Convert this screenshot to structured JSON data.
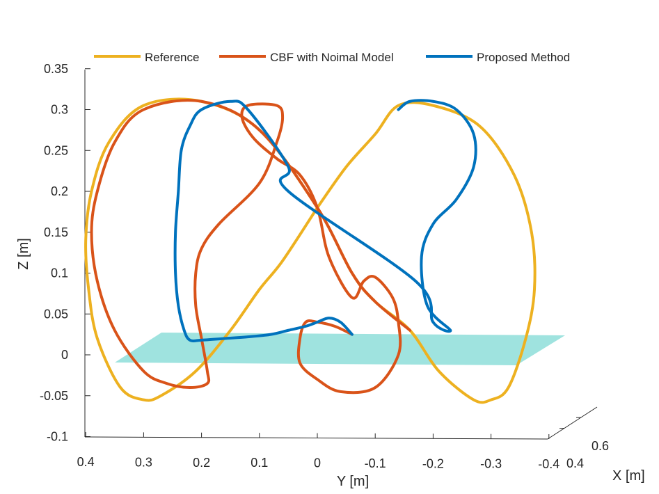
{
  "chart_data": {
    "type": "line",
    "projection": "3d",
    "title": "",
    "xlabel": "X [m]",
    "ylabel": "Y [m]",
    "zlabel": "Z [m]",
    "grid": false,
    "legend_position": "top",
    "x_ticks": [
      "0.4",
      "0.6"
    ],
    "y_ticks": [
      "0.4",
      "0.3",
      "0.2",
      "0.1",
      "0",
      "-0.1",
      "-0.2",
      "-0.3",
      "-0.4"
    ],
    "y_tick_values": [
      0.4,
      0.3,
      0.2,
      0.1,
      0,
      -0.1,
      -0.2,
      -0.3,
      -0.4
    ],
    "z_ticks": [
      "0.35",
      "0.3",
      "0.25",
      "0.2",
      "0.15",
      "0.1",
      "0.05",
      "0",
      "-0.05",
      "-0.1"
    ],
    "z_tick_values": [
      0.35,
      0.3,
      0.25,
      0.2,
      0.15,
      0.1,
      0.05,
      0,
      -0.05,
      -0.1
    ],
    "ylim": [
      -0.4,
      0.4
    ],
    "zlim": [
      -0.1,
      0.35
    ],
    "constraint_plane": {
      "name": "Z = 0 constraint plane",
      "color": "#7fd9d4"
    },
    "series": [
      {
        "name": "Reference",
        "color": "#edb120",
        "points": [
          [
            0.0,
            0.18
          ],
          [
            0.06,
            0.115
          ],
          [
            0.1,
            0.08
          ],
          [
            0.15,
            0.03
          ],
          [
            0.21,
            -0.02
          ],
          [
            0.27,
            -0.05
          ],
          [
            0.3,
            -0.055
          ],
          [
            0.34,
            -0.04
          ],
          [
            0.38,
            0.02
          ],
          [
            0.395,
            0.08
          ],
          [
            0.4,
            0.14
          ],
          [
            0.39,
            0.2
          ],
          [
            0.36,
            0.26
          ],
          [
            0.3,
            0.305
          ],
          [
            0.2,
            0.31
          ],
          [
            0.1,
            0.275
          ],
          [
            0.0,
            0.18
          ],
          [
            -0.06,
            0.1
          ],
          [
            -0.1,
            0.065
          ],
          [
            -0.16,
            0.03
          ],
          [
            -0.21,
            -0.02
          ],
          [
            -0.27,
            -0.055
          ],
          [
            -0.3,
            -0.055
          ],
          [
            -0.33,
            -0.04
          ],
          [
            -0.36,
            0.02
          ],
          [
            -0.375,
            0.08
          ],
          [
            -0.37,
            0.15
          ],
          [
            -0.34,
            0.22
          ],
          [
            -0.28,
            0.28
          ],
          [
            -0.2,
            0.305
          ],
          [
            -0.14,
            0.305
          ],
          [
            -0.1,
            0.27
          ],
          [
            -0.05,
            0.23
          ],
          [
            0.0,
            0.18
          ]
        ]
      },
      {
        "name": "CBF with Noimal Model",
        "color": "#d95319",
        "points": [
          [
            -0.06,
            0.025
          ],
          [
            -0.03,
            0.035
          ],
          [
            0.0,
            0.04
          ],
          [
            0.02,
            0.04
          ],
          [
            0.03,
            0.02
          ],
          [
            0.03,
            -0.01
          ],
          [
            0.0,
            -0.03
          ],
          [
            -0.04,
            -0.045
          ],
          [
            -0.1,
            -0.04
          ],
          [
            -0.14,
            0.0
          ],
          [
            -0.14,
            0.04
          ],
          [
            -0.13,
            0.07
          ],
          [
            -0.1,
            0.095
          ],
          [
            -0.08,
            0.09
          ],
          [
            -0.06,
            0.07
          ],
          [
            -0.02,
            0.12
          ],
          [
            0.0,
            0.18
          ],
          [
            0.03,
            0.22
          ],
          [
            0.07,
            0.24
          ],
          [
            0.11,
            0.265
          ],
          [
            0.13,
            0.29
          ],
          [
            0.12,
            0.305
          ],
          [
            0.07,
            0.305
          ],
          [
            0.06,
            0.29
          ],
          [
            0.07,
            0.26
          ],
          [
            0.1,
            0.21
          ],
          [
            0.17,
            0.16
          ],
          [
            0.2,
            0.13
          ],
          [
            0.21,
            0.1
          ],
          [
            0.21,
            0.06
          ],
          [
            0.2,
            0.02
          ],
          [
            0.19,
            -0.02
          ],
          [
            0.19,
            -0.035
          ],
          [
            0.22,
            -0.04
          ],
          [
            0.26,
            -0.035
          ],
          [
            0.3,
            -0.02
          ],
          [
            0.35,
            0.03
          ],
          [
            0.38,
            0.09
          ],
          [
            0.39,
            0.15
          ],
          [
            0.38,
            0.2
          ],
          [
            0.35,
            0.26
          ],
          [
            0.3,
            0.3
          ],
          [
            0.2,
            0.31
          ],
          [
            0.1,
            0.275
          ],
          [
            0.0,
            0.18
          ],
          [
            -0.06,
            0.1
          ],
          [
            -0.1,
            0.065
          ],
          [
            -0.16,
            0.03
          ]
        ]
      },
      {
        "name": "Proposed Method",
        "color": "#0072bd",
        "points": [
          [
            -0.06,
            0.025
          ],
          [
            -0.04,
            0.04
          ],
          [
            -0.02,
            0.045
          ],
          [
            0.0,
            0.04
          ],
          [
            0.02,
            0.035
          ],
          [
            0.05,
            0.03
          ],
          [
            0.08,
            0.025
          ],
          [
            0.12,
            0.022
          ],
          [
            0.16,
            0.02
          ],
          [
            0.2,
            0.018
          ],
          [
            0.22,
            0.018
          ],
          [
            0.23,
            0.03
          ],
          [
            0.24,
            0.06
          ],
          [
            0.245,
            0.1
          ],
          [
            0.245,
            0.15
          ],
          [
            0.24,
            0.2
          ],
          [
            0.235,
            0.25
          ],
          [
            0.22,
            0.28
          ],
          [
            0.2,
            0.3
          ],
          [
            0.15,
            0.31
          ],
          [
            0.12,
            0.3
          ],
          [
            0.05,
            0.23
          ],
          [
            0.05,
            0.2
          ],
          [
            -0.17,
            0.09
          ],
          [
            -0.2,
            0.04
          ],
          [
            -0.23,
            0.03
          ],
          [
            -0.19,
            0.06
          ],
          [
            -0.18,
            0.12
          ],
          [
            -0.2,
            0.16
          ],
          [
            -0.24,
            0.19
          ],
          [
            -0.27,
            0.23
          ],
          [
            -0.27,
            0.27
          ],
          [
            -0.24,
            0.3
          ],
          [
            -0.2,
            0.31
          ],
          [
            -0.16,
            0.31
          ],
          [
            -0.14,
            0.3
          ]
        ]
      }
    ]
  }
}
